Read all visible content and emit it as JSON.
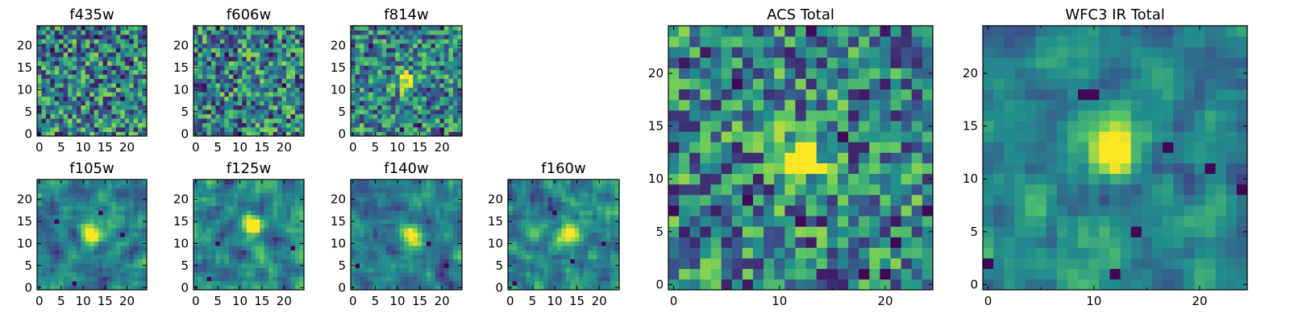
{
  "figure": {
    "colormap": "viridis",
    "colors": [
      "#440154",
      "#3b528b",
      "#21908d",
      "#5dc863",
      "#fde725"
    ],
    "frame_color": "#000000",
    "background": "#ffffff"
  },
  "chart_data": [
    {
      "type": "heatmap",
      "title": "f435w",
      "x_ticks": [
        0,
        5,
        10,
        15,
        20
      ],
      "y_ticks": [
        0,
        5,
        10,
        15,
        20
      ],
      "xlim": [
        -0.5,
        24.5
      ],
      "ylim": [
        -0.5,
        24.5
      ],
      "grid_size": 25,
      "source_center": null,
      "peak_value": 0.0,
      "noise_level": 0.55,
      "smoothing": 0,
      "dark_spots": [
        [
          3,
          19
        ],
        [
          13,
          22
        ],
        [
          19,
          8
        ],
        [
          21,
          16
        ]
      ]
    },
    {
      "type": "heatmap",
      "title": "f606w",
      "x_ticks": [
        0,
        5,
        10,
        15,
        20
      ],
      "y_ticks": [
        0,
        5,
        10,
        15,
        20
      ],
      "xlim": [
        -0.5,
        24.5
      ],
      "ylim": [
        -0.5,
        24.5
      ],
      "grid_size": 25,
      "source_center": null,
      "peak_value": 0.0,
      "noise_level": 0.55,
      "smoothing": 0,
      "dark_spots": [
        [
          2,
          11
        ],
        [
          7,
          18
        ],
        [
          10,
          0
        ],
        [
          20,
          11
        ]
      ]
    },
    {
      "type": "heatmap",
      "title": "f814w",
      "x_ticks": [
        0,
        5,
        10,
        15,
        20
      ],
      "y_ticks": [
        0,
        5,
        10,
        15,
        20
      ],
      "xlim": [
        -0.5,
        24.5
      ],
      "ylim": [
        -0.5,
        24.5
      ],
      "grid_size": 25,
      "source_center": [
        12,
        12
      ],
      "peak_value": 0.55,
      "noise_level": 0.5,
      "smoothing": 0,
      "dark_spots": [
        [
          11,
          1
        ],
        [
          15,
          2
        ],
        [
          20,
          1
        ],
        [
          4,
          20
        ]
      ]
    },
    {
      "type": "heatmap",
      "title": "f105w",
      "x_ticks": [
        0,
        5,
        10,
        15,
        20
      ],
      "y_ticks": [
        0,
        5,
        10,
        15,
        20
      ],
      "xlim": [
        -0.5,
        24.5
      ],
      "ylim": [
        -0.5,
        24.5
      ],
      "grid_size": 25,
      "source_center": [
        12,
        12
      ],
      "peak_value": 0.75,
      "noise_level": 0.45,
      "smoothing": 1,
      "dark_spots": [
        [
          8,
          1
        ],
        [
          14,
          17
        ],
        [
          19,
          12
        ],
        [
          4,
          15
        ]
      ]
    },
    {
      "type": "heatmap",
      "title": "f125w",
      "x_ticks": [
        0,
        5,
        10,
        15,
        20
      ],
      "y_ticks": [
        0,
        5,
        10,
        15,
        20
      ],
      "xlim": [
        -0.5,
        24.5
      ],
      "ylim": [
        -0.5,
        24.5
      ],
      "grid_size": 25,
      "source_center": [
        13,
        14
      ],
      "peak_value": 0.7,
      "noise_level": 0.45,
      "smoothing": 1,
      "dark_spots": [
        [
          5,
          10
        ],
        [
          22,
          9
        ],
        [
          3,
          2
        ]
      ]
    },
    {
      "type": "heatmap",
      "title": "f140w",
      "x_ticks": [
        0,
        5,
        10,
        15,
        20
      ],
      "y_ticks": [
        0,
        5,
        10,
        15,
        20
      ],
      "xlim": [
        -0.5,
        24.5
      ],
      "ylim": [
        -0.5,
        24.5
      ],
      "grid_size": 25,
      "source_center": [
        13,
        12
      ],
      "peak_value": 0.75,
      "noise_level": 0.45,
      "smoothing": 1,
      "dark_spots": [
        [
          1,
          5
        ],
        [
          17,
          10
        ],
        [
          21,
          5
        ]
      ]
    },
    {
      "type": "heatmap",
      "title": "f160w",
      "x_ticks": [
        0,
        5,
        10,
        15,
        20
      ],
      "y_ticks": [
        0,
        5,
        10,
        15,
        20
      ],
      "xlim": [
        -0.5,
        24.5
      ],
      "ylim": [
        -0.5,
        24.5
      ],
      "grid_size": 25,
      "source_center": [
        13,
        12
      ],
      "peak_value": 0.7,
      "noise_level": 0.45,
      "smoothing": 1,
      "dark_spots": [
        [
          1,
          1
        ],
        [
          10,
          17
        ],
        [
          14,
          6
        ],
        [
          21,
          10
        ]
      ]
    },
    {
      "type": "heatmap",
      "title": "ACS Total",
      "x_ticks": [
        0,
        10,
        20
      ],
      "x_minor_ticks": [
        5,
        15
      ],
      "y_ticks": [
        0,
        5,
        10,
        15,
        20
      ],
      "xlim": [
        -0.5,
        24.5
      ],
      "ylim": [
        -0.5,
        24.5
      ],
      "grid_size": 25,
      "source_center": [
        12,
        12
      ],
      "peak_value": 0.75,
      "noise_level": 0.55,
      "smoothing": 0,
      "dark_spots": [
        [
          6,
          19
        ],
        [
          13,
          24
        ],
        [
          16,
          14
        ],
        [
          12,
          6
        ],
        [
          7,
          8
        ],
        [
          18,
          1
        ],
        [
          20,
          1
        ],
        [
          21,
          4
        ],
        [
          24,
          7
        ],
        [
          0,
          7
        ]
      ]
    },
    {
      "type": "heatmap",
      "title": "WFC3 IR Total",
      "x_ticks": [
        0,
        10,
        20
      ],
      "x_minor_ticks": [
        5,
        15
      ],
      "y_ticks": [
        0,
        5,
        10,
        15,
        20
      ],
      "xlim": [
        -0.5,
        24.5
      ],
      "ylim": [
        -0.5,
        24.5
      ],
      "grid_size": 25,
      "source_center": [
        12,
        13
      ],
      "peak_value": 0.85,
      "noise_level": 0.35,
      "smoothing": 1,
      "dark_spots": [
        [
          9,
          18
        ],
        [
          10,
          18
        ],
        [
          17,
          13
        ],
        [
          21,
          11
        ],
        [
          24,
          9
        ],
        [
          14,
          5
        ],
        [
          0,
          2
        ],
        [
          12,
          1
        ]
      ]
    }
  ]
}
